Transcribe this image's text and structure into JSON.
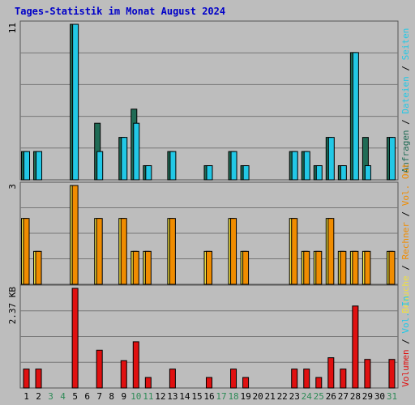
{
  "title": "Tages-Statistik im Monat August 2024",
  "colors": {
    "background": "#bdbdbd",
    "grid": "#777777",
    "title": "#0000c8",
    "axis_text": "#000000",
    "weekend_label": "#2e8b57",
    "anfragen": "#1f6b55",
    "dateien": "#22c8e6",
    "besuche": "#f0e040",
    "rechner": "#f08c00",
    "volumen": "#e01010"
  },
  "chart_data": [
    {
      "type": "bar",
      "panel": "top",
      "max_label": "11",
      "ylim": [
        0,
        11
      ],
      "categories": [
        "1",
        "2",
        "3",
        "4",
        "5",
        "6",
        "7",
        "8",
        "9",
        "10",
        "11",
        "12",
        "13",
        "14",
        "15",
        "16",
        "17",
        "18",
        "19",
        "20",
        "21",
        "22",
        "23",
        "24",
        "25",
        "26",
        "27",
        "28",
        "29",
        "30",
        "31"
      ],
      "weekend_days": [
        "3",
        "4",
        "10",
        "11",
        "17",
        "18",
        "24",
        "25",
        "31"
      ],
      "series": [
        {
          "name": "Anfragen",
          "values": [
            2,
            2,
            0,
            0,
            11,
            0,
            4,
            0,
            3,
            5,
            1,
            0,
            2,
            0,
            0,
            1,
            0,
            2,
            1,
            0,
            0,
            0,
            2,
            2,
            1,
            3,
            1,
            9,
            3,
            0,
            3
          ]
        },
        {
          "name": "Dateien",
          "values": [
            2,
            2,
            0,
            0,
            11,
            0,
            2,
            0,
            3,
            4,
            1,
            0,
            2,
            0,
            0,
            1,
            0,
            2,
            1,
            0,
            0,
            0,
            2,
            2,
            1,
            3,
            1,
            9,
            1,
            0,
            3
          ]
        },
        {
          "name": "Seiten",
          "values": [
            2,
            2,
            0,
            0,
            11,
            0,
            2,
            0,
            3,
            4,
            1,
            0,
            2,
            0,
            0,
            1,
            0,
            2,
            1,
            0,
            0,
            0,
            2,
            2,
            1,
            3,
            1,
            9,
            1,
            0,
            3
          ]
        }
      ],
      "legend": [
        "Anfragen",
        "Dateien",
        "Seiten"
      ],
      "legend_separator": "/"
    },
    {
      "type": "bar",
      "panel": "middle",
      "max_label": "3",
      "ylim": [
        0,
        3
      ],
      "series": [
        {
          "name": "Besuche",
          "values": [
            2,
            1,
            0,
            0,
            3,
            0,
            2,
            0,
            2,
            1,
            1,
            0,
            2,
            0,
            0,
            1,
            0,
            2,
            1,
            0,
            0,
            0,
            2,
            1,
            1,
            2,
            1,
            1,
            1,
            0,
            1
          ]
        },
        {
          "name": "Rechner",
          "values": [
            2,
            1,
            0,
            0,
            3,
            0,
            2,
            0,
            2,
            1,
            1,
            0,
            2,
            0,
            0,
            1,
            0,
            2,
            1,
            0,
            0,
            0,
            2,
            1,
            1,
            2,
            1,
            1,
            1,
            0,
            1
          ]
        }
      ],
      "legend": [
        "Besuche",
        "Rechner",
        "Vol. Out"
      ],
      "legend_separator": "/"
    },
    {
      "type": "bar",
      "panel": "bottom",
      "max_label": "2.37 KB",
      "ylim": [
        0,
        2.37
      ],
      "series": [
        {
          "name": "Volumen",
          "values": [
            0.45,
            0.45,
            0,
            0,
            2.37,
            0,
            0.9,
            0,
            0.65,
            1.1,
            0.25,
            0,
            0.45,
            0,
            0,
            0.25,
            0,
            0.45,
            0.25,
            0,
            0,
            0,
            0.45,
            0.45,
            0.25,
            0.72,
            0.45,
            1.95,
            0.68,
            0,
            0.68
          ]
        }
      ],
      "legend": [
        "Volumen",
        "Vol. In"
      ],
      "legend_separator": "/"
    }
  ]
}
